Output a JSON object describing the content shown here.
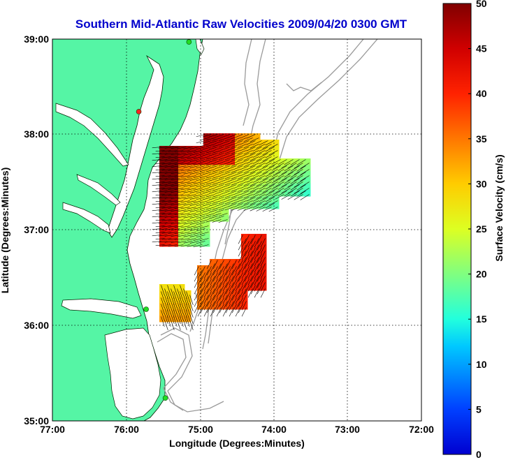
{
  "title": "Southern Mid-Atlantic Raw Velocities 2009/04/20 0300 GMT",
  "x_axis": {
    "label": "Longitude (Degrees:Minutes)",
    "ticks": [
      "77:00",
      "76:00",
      "75:00",
      "74:00",
      "73:00",
      "72:00"
    ],
    "tick_values": [
      -77,
      -76,
      -75,
      -74,
      -73,
      -72
    ],
    "range": [
      -77,
      -72
    ]
  },
  "y_axis": {
    "label": "Latitude (Degrees:Minutes)",
    "ticks": [
      "39:00",
      "38:00",
      "37:00",
      "36:00",
      "35:00"
    ],
    "tick_values": [
      39,
      38,
      37,
      36,
      35
    ],
    "range": [
      35,
      39
    ]
  },
  "colorbar": {
    "label": "Surface Velocity (cm/s)",
    "ticks": [
      "0",
      "5",
      "10",
      "15",
      "20",
      "25",
      "30",
      "35",
      "40",
      "45",
      "50"
    ],
    "range": [
      0,
      50
    ],
    "colormap": "jet"
  },
  "colors": {
    "title": "#0000cc",
    "land": "#55f5a5",
    "water": "#ffffff",
    "bathymetry": "#9a9a9a",
    "arrows": "#000000",
    "grid": "#000000"
  },
  "map": {
    "grid": "dotted",
    "stations": [
      {
        "lon": -75.15,
        "lat": 38.97,
        "color": "#22dd22"
      },
      {
        "lon": -75.83,
        "lat": 38.24,
        "color": "#ff2222"
      },
      {
        "lon": -75.73,
        "lat": 36.17,
        "color": "#22dd22"
      },
      {
        "lon": -75.47,
        "lat": 35.24,
        "color": "#22dd22"
      }
    ]
  }
}
